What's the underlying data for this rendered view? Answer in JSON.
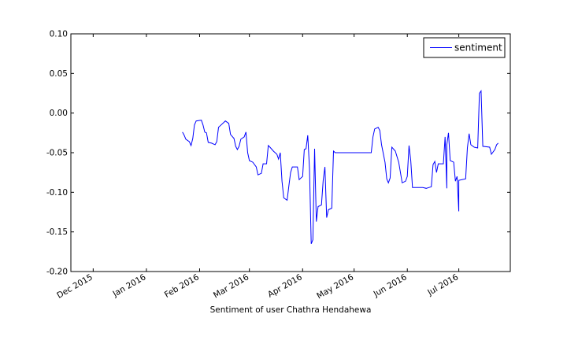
{
  "chart_data": {
    "type": "line",
    "xlabel": "Sentiment of user Chathra Hendahewa",
    "ylabel": "",
    "title": "",
    "ylim": [
      -0.2,
      0.1
    ],
    "xlim": [
      "2015-11-18",
      "2016-07-31"
    ],
    "x_ticks": [
      {
        "date": "2015-12-01",
        "label": "Dec 2015"
      },
      {
        "date": "2016-01-01",
        "label": "Jan 2016"
      },
      {
        "date": "2016-02-01",
        "label": "Feb 2016"
      },
      {
        "date": "2016-03-01",
        "label": "Mar 2016"
      },
      {
        "date": "2016-04-01",
        "label": "Apr 2016"
      },
      {
        "date": "2016-05-01",
        "label": "May 2016"
      },
      {
        "date": "2016-06-01",
        "label": "Jun 2016"
      },
      {
        "date": "2016-07-01",
        "label": "Jul 2016"
      }
    ],
    "y_ticks": [
      {
        "value": 0.1,
        "label": "0.10"
      },
      {
        "value": 0.05,
        "label": "0.05"
      },
      {
        "value": 0.0,
        "label": "0.00"
      },
      {
        "value": -0.05,
        "label": "-0.05"
      },
      {
        "value": -0.1,
        "label": "-0.10"
      },
      {
        "value": -0.15,
        "label": "-0.15"
      },
      {
        "value": -0.2,
        "label": "-0.20"
      }
    ],
    "legend": {
      "position": "top-right"
    },
    "grid": false,
    "series": [
      {
        "name": "sentiment",
        "color": "#0000ff",
        "points": [
          [
            "2016-01-22",
            -0.024
          ],
          [
            "2016-01-23",
            -0.028
          ],
          [
            "2016-01-24",
            -0.033
          ],
          [
            "2016-01-26",
            -0.036
          ],
          [
            "2016-01-27",
            -0.041
          ],
          [
            "2016-01-28",
            -0.032
          ],
          [
            "2016-01-29",
            -0.015
          ],
          [
            "2016-01-30",
            -0.01
          ],
          [
            "2016-02-02",
            -0.009
          ],
          [
            "2016-02-03",
            -0.015
          ],
          [
            "2016-02-04",
            -0.024
          ],
          [
            "2016-02-05",
            -0.025
          ],
          [
            "2016-02-06",
            -0.037
          ],
          [
            "2016-02-08",
            -0.038
          ],
          [
            "2016-02-10",
            -0.04
          ],
          [
            "2016-02-11",
            -0.036
          ],
          [
            "2016-02-12",
            -0.018
          ],
          [
            "2016-02-13",
            -0.016
          ],
          [
            "2016-02-15",
            -0.012
          ],
          [
            "2016-02-16",
            -0.01
          ],
          [
            "2016-02-18",
            -0.013
          ],
          [
            "2016-02-19",
            -0.027
          ],
          [
            "2016-02-21",
            -0.032
          ],
          [
            "2016-02-22",
            -0.042
          ],
          [
            "2016-02-23",
            -0.046
          ],
          [
            "2016-02-24",
            -0.042
          ],
          [
            "2016-02-25",
            -0.033
          ],
          [
            "2016-02-27",
            -0.03
          ],
          [
            "2016-02-28",
            -0.024
          ],
          [
            "2016-02-29",
            -0.05
          ],
          [
            "2016-03-01",
            -0.06
          ],
          [
            "2016-03-03",
            -0.062
          ],
          [
            "2016-03-05",
            -0.068
          ],
          [
            "2016-03-06",
            -0.078
          ],
          [
            "2016-03-08",
            -0.076
          ],
          [
            "2016-03-09",
            -0.064
          ],
          [
            "2016-03-11",
            -0.064
          ],
          [
            "2016-03-12",
            -0.041
          ],
          [
            "2016-03-13",
            -0.043
          ],
          [
            "2016-03-15",
            -0.048
          ],
          [
            "2016-03-17",
            -0.052
          ],
          [
            "2016-03-18",
            -0.058
          ],
          [
            "2016-03-19",
            -0.05
          ],
          [
            "2016-03-20",
            -0.086
          ],
          [
            "2016-03-21",
            -0.107
          ],
          [
            "2016-03-23",
            -0.11
          ],
          [
            "2016-03-24",
            -0.092
          ],
          [
            "2016-03-25",
            -0.075
          ],
          [
            "2016-03-26",
            -0.068
          ],
          [
            "2016-03-29",
            -0.068
          ],
          [
            "2016-03-30",
            -0.084
          ],
          [
            "2016-04-01",
            -0.08
          ],
          [
            "2016-04-02",
            -0.046
          ],
          [
            "2016-04-03",
            -0.045
          ],
          [
            "2016-04-04",
            -0.028
          ],
          [
            "2016-04-05",
            -0.07
          ],
          [
            "2016-04-06",
            -0.165
          ],
          [
            "2016-04-07",
            -0.16
          ],
          [
            "2016-04-08",
            -0.045
          ],
          [
            "2016-04-09",
            -0.137
          ],
          [
            "2016-04-10",
            -0.118
          ],
          [
            "2016-04-12",
            -0.116
          ],
          [
            "2016-04-13",
            -0.085
          ],
          [
            "2016-04-14",
            -0.068
          ],
          [
            "2016-04-15",
            -0.132
          ],
          [
            "2016-04-16",
            -0.122
          ],
          [
            "2016-04-18",
            -0.12
          ],
          [
            "2016-04-19",
            -0.048
          ],
          [
            "2016-04-20",
            -0.05
          ],
          [
            "2016-05-11",
            -0.05
          ],
          [
            "2016-05-12",
            -0.03
          ],
          [
            "2016-05-13",
            -0.02
          ],
          [
            "2016-05-15",
            -0.018
          ],
          [
            "2016-05-16",
            -0.022
          ],
          [
            "2016-05-17",
            -0.04
          ],
          [
            "2016-05-19",
            -0.062
          ],
          [
            "2016-05-20",
            -0.083
          ],
          [
            "2016-05-21",
            -0.088
          ],
          [
            "2016-05-22",
            -0.082
          ],
          [
            "2016-05-23",
            -0.043
          ],
          [
            "2016-05-25",
            -0.048
          ],
          [
            "2016-05-27",
            -0.062
          ],
          [
            "2016-05-28",
            -0.075
          ],
          [
            "2016-05-29",
            -0.088
          ],
          [
            "2016-05-31",
            -0.086
          ],
          [
            "2016-06-01",
            -0.08
          ],
          [
            "2016-06-02",
            -0.041
          ],
          [
            "2016-06-03",
            -0.06
          ],
          [
            "2016-06-04",
            -0.094
          ],
          [
            "2016-06-10",
            -0.094
          ],
          [
            "2016-06-12",
            -0.095
          ],
          [
            "2016-06-15",
            -0.093
          ],
          [
            "2016-06-16",
            -0.065
          ],
          [
            "2016-06-17",
            -0.061
          ],
          [
            "2016-06-18",
            -0.075
          ],
          [
            "2016-06-19",
            -0.064
          ],
          [
            "2016-06-22",
            -0.064
          ],
          [
            "2016-06-23",
            -0.03
          ],
          [
            "2016-06-24",
            -0.095
          ],
          [
            "2016-06-24",
            -0.04
          ],
          [
            "2016-06-25",
            -0.025
          ],
          [
            "2016-06-26",
            -0.06
          ],
          [
            "2016-06-28",
            -0.062
          ],
          [
            "2016-06-29",
            -0.086
          ],
          [
            "2016-06-30",
            -0.08
          ],
          [
            "2016-07-01",
            -0.124
          ],
          [
            "2016-07-01",
            -0.085
          ],
          [
            "2016-07-05",
            -0.083
          ],
          [
            "2016-07-06",
            -0.044
          ],
          [
            "2016-07-07",
            -0.026
          ],
          [
            "2016-07-08",
            -0.04
          ],
          [
            "2016-07-10",
            -0.043
          ],
          [
            "2016-07-12",
            -0.044
          ],
          [
            "2016-07-13",
            0.025
          ],
          [
            "2016-07-14",
            0.028
          ],
          [
            "2016-07-15",
            -0.042
          ],
          [
            "2016-07-19",
            -0.043
          ],
          [
            "2016-07-20",
            -0.052
          ],
          [
            "2016-07-22",
            -0.046
          ],
          [
            "2016-07-23",
            -0.04
          ],
          [
            "2016-07-24",
            -0.038
          ]
        ]
      }
    ]
  }
}
